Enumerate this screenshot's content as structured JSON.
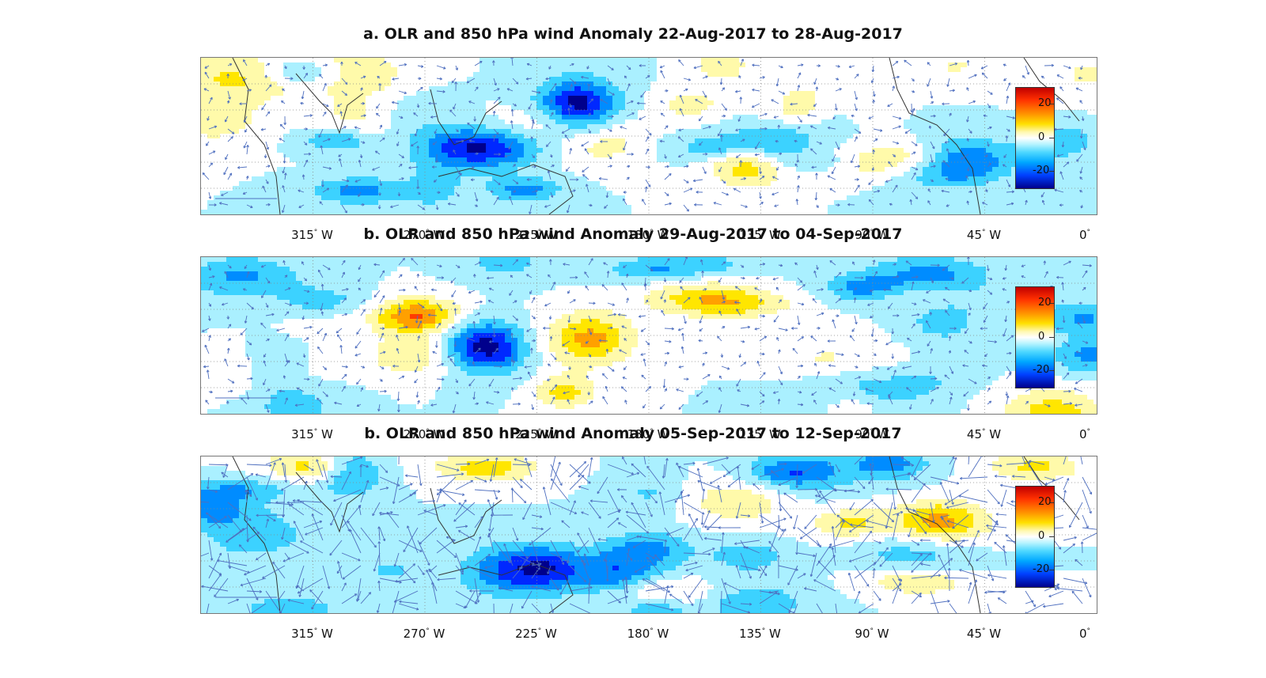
{
  "panels": [
    {
      "title": "a. OLR and 850 hPa wind Anomaly 22-Aug-2017 to 28-Aug-2017",
      "seed": 11,
      "wind": "weak"
    },
    {
      "title": "b. OLR and 850 hPa wind Anomaly 29-Aug-2017 to 04-Sep-2017",
      "seed": 27,
      "wind": "weak"
    },
    {
      "title": "b. OLR and 850 hPa wind Anomaly 05-Sep-2017 to 12-Sep-2017",
      "seed": 43,
      "wind": "strong"
    }
  ],
  "axis": {
    "x_ticks": [
      {
        "value": 315,
        "label": "315",
        "suffix": "W"
      },
      {
        "value": 270,
        "label": "270",
        "suffix": "W"
      },
      {
        "value": 225,
        "label": "225",
        "suffix": "W"
      },
      {
        "value": 180,
        "label": "180",
        "suffix": "W"
      },
      {
        "value": 135,
        "label": "135",
        "suffix": "W"
      },
      {
        "value": 90,
        "label": "90",
        "suffix": "W"
      },
      {
        "value": 45,
        "label": "45",
        "suffix": "W"
      },
      {
        "value": 0,
        "label": "0",
        "suffix": ""
      }
    ],
    "degree_symbol": "°"
  },
  "colorbar": {
    "ticks": [
      {
        "value": 20,
        "label": "20"
      },
      {
        "value": 0,
        "label": "0"
      },
      {
        "value": -20,
        "label": "-20"
      }
    ],
    "range": [
      -30,
      30
    ]
  },
  "chart_data": [
    {
      "type": "heatmap",
      "title": "a. OLR and 850 hPa wind Anomaly 22-Aug-2017 to 28-Aug-2017",
      "xlabel": "",
      "ylabel": "",
      "x_range_deg_west": [
        360,
        0
      ],
      "color_range": [
        -30,
        30
      ],
      "colorbar_ticks": [
        20,
        0,
        -20
      ],
      "features": [
        {
          "description": "strong negative OLR anomaly (deep convection)",
          "lon_deg_west": 250,
          "value": -25
        },
        {
          "description": "negative OLR anomaly",
          "lon_deg_west": 210,
          "value": -18
        },
        {
          "description": "positive OLR anomaly band",
          "lon_deg_west": 115,
          "value": 12
        },
        {
          "description": "positive OLR anomaly",
          "lon_deg_west": 295,
          "value": 10
        }
      ]
    },
    {
      "type": "heatmap",
      "title": "b. OLR and 850 hPa wind Anomaly 29-Aug-2017 to 04-Sep-2017",
      "xlabel": "",
      "ylabel": "",
      "x_range_deg_west": [
        360,
        0
      ],
      "color_range": [
        -30,
        30
      ],
      "colorbar_ticks": [
        20,
        0,
        -20
      ],
      "features": [
        {
          "description": "strong positive OLR anomaly",
          "lon_deg_west": 275,
          "value": 25
        },
        {
          "description": "positive OLR anomaly",
          "lon_deg_west": 205,
          "value": 20
        },
        {
          "description": "negative OLR anomaly",
          "lon_deg_west": 245,
          "value": -20
        },
        {
          "description": "positive OLR anomaly band",
          "lon_deg_west": 160,
          "value": 12
        }
      ]
    },
    {
      "type": "heatmap",
      "title": "b. OLR and 850 hPa wind Anomaly 05-Sep-2017 to 12-Sep-2017",
      "xlabel": "",
      "ylabel": "",
      "x_range_deg_west": [
        360,
        0
      ],
      "color_range": [
        -30,
        30
      ],
      "colorbar_ticks": [
        20,
        0,
        -20
      ],
      "features": [
        {
          "description": "negative OLR anomaly",
          "lon_deg_west": 235,
          "value": -20
        },
        {
          "description": "negative OLR anomaly",
          "lon_deg_west": 195,
          "value": -18
        },
        {
          "description": "positive OLR anomaly band",
          "lon_deg_west": 145,
          "value": 10
        },
        {
          "description": "strong 850 hPa wind anomalies across Pacific",
          "lon_deg_west": 190,
          "value": 0
        }
      ]
    }
  ]
}
